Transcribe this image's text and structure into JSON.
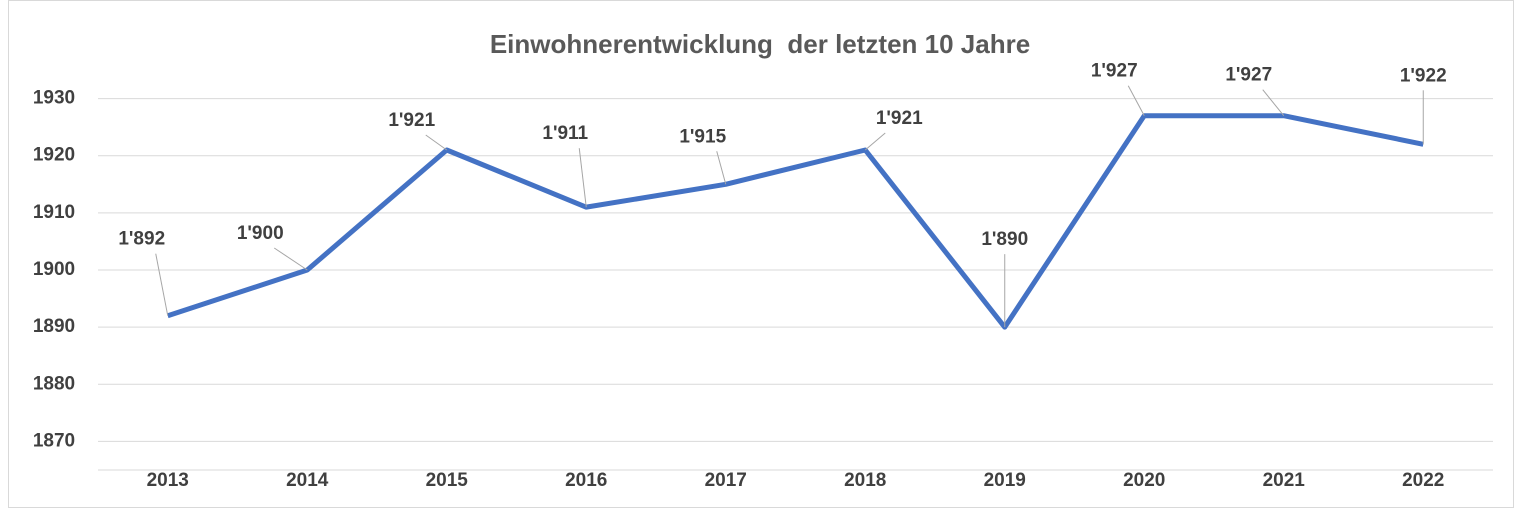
{
  "chart_data": {
    "type": "line",
    "title": "Einwohnerentwicklung  der letzten 10 Jahre",
    "categories": [
      "2013",
      "2014",
      "2015",
      "2016",
      "2017",
      "2018",
      "2019",
      "2020",
      "2021",
      "2022"
    ],
    "values": [
      1892,
      1900,
      1921,
      1911,
      1915,
      1921,
      1890,
      1927,
      1927,
      1922
    ],
    "value_labels": [
      "1'892",
      "1'900",
      "1'921",
      "1'911",
      "1'915",
      "1'921",
      "1'890",
      "1'927",
      "1'927",
      "1'922"
    ],
    "color": "#4472c4",
    "ylim": [
      1865,
      1935
    ],
    "yticks": [
      1870,
      1880,
      1890,
      1900,
      1910,
      1920,
      1930
    ],
    "grid": true
  }
}
